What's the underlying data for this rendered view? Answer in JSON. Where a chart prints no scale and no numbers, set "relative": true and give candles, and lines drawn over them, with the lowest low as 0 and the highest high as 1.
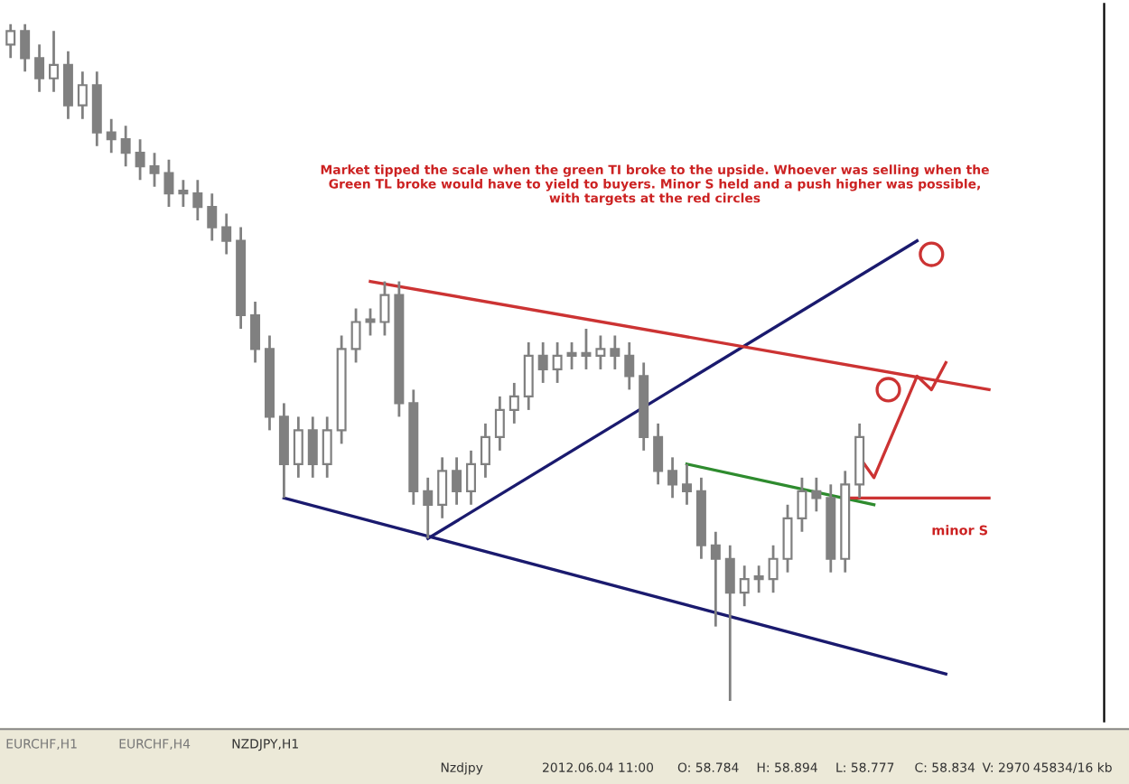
{
  "chart_data": {
    "type": "candlestick",
    "relative": true,
    "categories": [
      null,
      null,
      null,
      null,
      null,
      null,
      null,
      null,
      null,
      null,
      null,
      null,
      null,
      null,
      null,
      null,
      null,
      null,
      null,
      null,
      null,
      null,
      null,
      null,
      null,
      null,
      null,
      null,
      null,
      null,
      null,
      null,
      null,
      null,
      null,
      null,
      null,
      null,
      null,
      null,
      null,
      null,
      null,
      null,
      null,
      null,
      null,
      null,
      null,
      null,
      null,
      null,
      null,
      null,
      null,
      null,
      null,
      null,
      null,
      null,
      null,
      null,
      null,
      null,
      null,
      null,
      null,
      null,
      null,
      null,
      null,
      null
    ],
    "color": "#808080",
    "ohlc": [
      [
        0.97,
        1.0,
        0.95,
        0.99
      ],
      [
        0.99,
        1.0,
        0.93,
        0.95
      ],
      [
        0.95,
        0.97,
        0.9,
        0.92
      ],
      [
        0.92,
        0.99,
        0.9,
        0.94
      ],
      [
        0.94,
        0.96,
        0.86,
        0.88
      ],
      [
        0.88,
        0.93,
        0.86,
        0.91
      ],
      [
        0.91,
        0.93,
        0.82,
        0.84
      ],
      [
        0.84,
        0.86,
        0.81,
        0.83
      ],
      [
        0.83,
        0.85,
        0.79,
        0.81
      ],
      [
        0.81,
        0.83,
        0.77,
        0.79
      ],
      [
        0.79,
        0.81,
        0.76,
        0.78
      ],
      [
        0.78,
        0.8,
        0.73,
        0.75
      ],
      [
        0.75,
        0.77,
        0.73,
        0.75
      ],
      [
        0.75,
        0.77,
        0.71,
        0.73
      ],
      [
        0.73,
        0.75,
        0.68,
        0.7
      ],
      [
        0.7,
        0.72,
        0.66,
        0.68
      ],
      [
        0.68,
        0.7,
        0.55,
        0.57
      ],
      [
        0.57,
        0.59,
        0.5,
        0.52
      ],
      [
        0.52,
        0.54,
        0.4,
        0.42
      ],
      [
        0.42,
        0.44,
        0.3,
        0.35
      ],
      [
        0.35,
        0.42,
        0.33,
        0.4
      ],
      [
        0.4,
        0.42,
        0.33,
        0.35
      ],
      [
        0.35,
        0.42,
        0.33,
        0.4
      ],
      [
        0.4,
        0.54,
        0.38,
        0.52
      ],
      [
        0.52,
        0.58,
        0.5,
        0.56
      ],
      [
        0.56,
        0.58,
        0.54,
        0.56
      ],
      [
        0.56,
        0.62,
        0.54,
        0.6
      ],
      [
        0.6,
        0.62,
        0.42,
        0.44
      ],
      [
        0.44,
        0.46,
        0.29,
        0.31
      ],
      [
        0.31,
        0.33,
        0.24,
        0.29
      ],
      [
        0.29,
        0.36,
        0.27,
        0.34
      ],
      [
        0.34,
        0.36,
        0.29,
        0.31
      ],
      [
        0.31,
        0.37,
        0.29,
        0.35
      ],
      [
        0.35,
        0.41,
        0.33,
        0.39
      ],
      [
        0.39,
        0.45,
        0.37,
        0.43
      ],
      [
        0.43,
        0.47,
        0.41,
        0.45
      ],
      [
        0.45,
        0.53,
        0.43,
        0.51
      ],
      [
        0.51,
        0.53,
        0.47,
        0.49
      ],
      [
        0.49,
        0.53,
        0.47,
        0.51
      ],
      [
        0.51,
        0.53,
        0.49,
        0.51
      ],
      [
        0.51,
        0.55,
        0.49,
        0.51
      ],
      [
        0.51,
        0.54,
        0.49,
        0.52
      ],
      [
        0.52,
        0.54,
        0.49,
        0.51
      ],
      [
        0.51,
        0.53,
        0.46,
        0.48
      ],
      [
        0.48,
        0.5,
        0.37,
        0.39
      ],
      [
        0.39,
        0.41,
        0.32,
        0.34
      ],
      [
        0.34,
        0.36,
        0.3,
        0.32
      ],
      [
        0.32,
        0.35,
        0.29,
        0.31
      ],
      [
        0.31,
        0.33,
        0.21,
        0.23
      ],
      [
        0.23,
        0.25,
        0.11,
        0.21
      ],
      [
        0.21,
        0.23,
        0.0,
        0.16
      ],
      [
        0.16,
        0.2,
        0.14,
        0.18
      ],
      [
        0.18,
        0.2,
        0.16,
        0.18
      ],
      [
        0.18,
        0.23,
        0.16,
        0.21
      ],
      [
        0.21,
        0.29,
        0.19,
        0.27
      ],
      [
        0.27,
        0.33,
        0.25,
        0.31
      ],
      [
        0.31,
        0.33,
        0.28,
        0.3
      ],
      [
        0.3,
        0.32,
        0.19,
        0.21
      ],
      [
        0.21,
        0.34,
        0.19,
        0.32
      ],
      [
        0.32,
        0.41,
        0.3,
        0.39
      ],
      null,
      null,
      null,
      null,
      null,
      null,
      null,
      null,
      null,
      null,
      null,
      null
    ],
    "series": [
      {
        "type": "line",
        "color": "#1a1a6e",
        "values": [
          null,
          null,
          null,
          null,
          null,
          null,
          null,
          null,
          null,
          null,
          null,
          null,
          null,
          null,
          null,
          null,
          null,
          null,
          null,
          0.3,
          null,
          null,
          null,
          null,
          null,
          null,
          null,
          null,
          null,
          null,
          null,
          null,
          null,
          null,
          null,
          null,
          null,
          null,
          null,
          null,
          null,
          null,
          null,
          null,
          null,
          null,
          null,
          null,
          null,
          null,
          null,
          null,
          null,
          null,
          null,
          null,
          null,
          null,
          null,
          null,
          null,
          null,
          null,
          null,
          null,
          0.04,
          null,
          null,
          null,
          null,
          null,
          null
        ]
      },
      {
        "type": "line",
        "color": "#1a1a6e",
        "values": [
          null,
          null,
          null,
          null,
          null,
          null,
          null,
          null,
          null,
          null,
          null,
          null,
          null,
          null,
          null,
          null,
          null,
          null,
          null,
          null,
          null,
          null,
          null,
          null,
          null,
          null,
          null,
          null,
          null,
          0.24,
          null,
          null,
          null,
          null,
          null,
          null,
          null,
          null,
          null,
          null,
          null,
          null,
          null,
          null,
          null,
          null,
          null,
          null,
          null,
          null,
          null,
          null,
          null,
          null,
          null,
          null,
          null,
          null,
          null,
          null,
          null,
          null,
          null,
          0.68,
          null,
          null,
          null,
          null,
          null,
          null,
          null,
          null
        ]
      },
      {
        "type": "line",
        "color": "#cc3333",
        "values": [
          null,
          null,
          null,
          null,
          null,
          null,
          null,
          null,
          null,
          null,
          null,
          null,
          null,
          null,
          null,
          null,
          null,
          null,
          null,
          null,
          null,
          null,
          null,
          null,
          null,
          0.62,
          null,
          null,
          null,
          null,
          null,
          null,
          null,
          null,
          null,
          null,
          null,
          null,
          null,
          null,
          null,
          null,
          null,
          null,
          null,
          null,
          null,
          null,
          null,
          null,
          null,
          null,
          null,
          null,
          null,
          null,
          null,
          null,
          null,
          null,
          null,
          null,
          null,
          null,
          null,
          null,
          null,
          null,
          0.46,
          null,
          null,
          null
        ]
      },
      {
        "type": "line",
        "color": "#2e8b2e",
        "values": [
          null,
          null,
          null,
          null,
          null,
          null,
          null,
          null,
          null,
          null,
          null,
          null,
          null,
          null,
          null,
          null,
          null,
          null,
          null,
          null,
          null,
          null,
          null,
          null,
          null,
          null,
          null,
          null,
          null,
          null,
          null,
          null,
          null,
          null,
          null,
          null,
          null,
          null,
          null,
          null,
          null,
          null,
          null,
          null,
          null,
          null,
          null,
          0.35,
          null,
          null,
          null,
          null,
          null,
          null,
          null,
          null,
          null,
          null,
          null,
          null,
          0.29,
          null,
          null,
          null,
          null,
          null,
          null,
          null,
          null,
          null,
          null,
          null
        ]
      },
      {
        "type": "line",
        "color": "#cc3333",
        "values": [
          null,
          null,
          null,
          null,
          null,
          null,
          null,
          null,
          null,
          null,
          null,
          null,
          null,
          null,
          null,
          null,
          null,
          null,
          null,
          null,
          null,
          null,
          null,
          null,
          null,
          null,
          null,
          null,
          null,
          null,
          null,
          null,
          null,
          null,
          null,
          null,
          null,
          null,
          null,
          null,
          null,
          null,
          null,
          null,
          null,
          null,
          null,
          null,
          null,
          null,
          null,
          null,
          null,
          null,
          null,
          null,
          null,
          null,
          0.3,
          null,
          null,
          null,
          null,
          null,
          null,
          null,
          null,
          null,
          0.3,
          null,
          null,
          null
        ]
      },
      {
        "type": "line",
        "color": "#cc3333",
        "values": [
          null,
          null,
          null,
          null,
          null,
          null,
          null,
          null,
          null,
          null,
          null,
          null,
          null,
          null,
          null,
          null,
          null,
          null,
          null,
          null,
          null,
          null,
          null,
          null,
          null,
          null,
          null,
          null,
          null,
          null,
          null,
          null,
          null,
          null,
          null,
          null,
          null,
          null,
          null,
          null,
          null,
          null,
          null,
          null,
          null,
          null,
          null,
          null,
          null,
          null,
          null,
          null,
          null,
          null,
          null,
          null,
          null,
          null,
          null,
          0.36,
          0.33,
          null,
          null,
          0.48,
          0.46,
          0.5,
          null,
          null,
          null,
          null,
          null,
          null
        ]
      },
      {
        "type": "scatter",
        "color": "#cc3333",
        "marker": "circle",
        "values": [
          null,
          null,
          null,
          null,
          null,
          null,
          null,
          null,
          null,
          null,
          null,
          null,
          null,
          null,
          null,
          null,
          null,
          null,
          null,
          null,
          null,
          null,
          null,
          null,
          null,
          null,
          null,
          null,
          null,
          null,
          null,
          null,
          null,
          null,
          null,
          null,
          null,
          null,
          null,
          null,
          null,
          null,
          null,
          null,
          null,
          null,
          null,
          null,
          null,
          null,
          null,
          null,
          null,
          null,
          null,
          null,
          null,
          null,
          null,
          null,
          null,
          0.46,
          null,
          null,
          0.66,
          null,
          null,
          null,
          null,
          null,
          null,
          null
        ]
      }
    ],
    "annotations": [
      "Market tipped the scale when the green TI broke to the upside. Whoever was selling when the Green TL broke would have to yield to buyers. Minor S held and a push higher was possible, with targets at the red circles",
      "minor S",
      "EURCHF,H1",
      "EURCHF,H4",
      "NZDJPY,H1",
      "Nzdjpy",
      "2012.06.04 11:00",
      "O: 58.784",
      "H: 58.894",
      "L: 58.777",
      "C: 58.834",
      "V: 2970",
      "45834/16 kb"
    ]
  }
}
